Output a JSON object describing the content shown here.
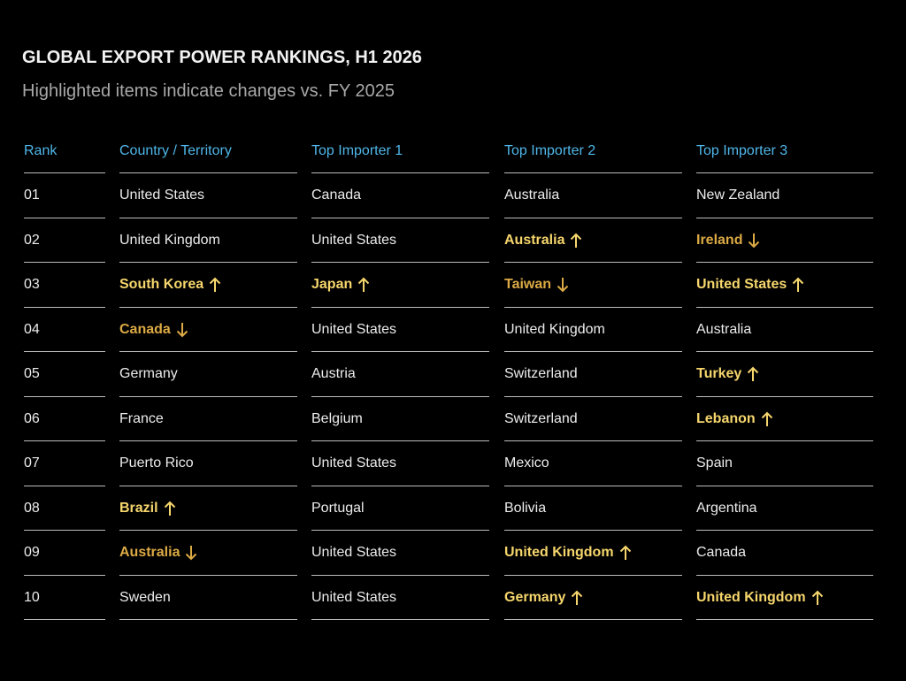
{
  "header": {
    "title": "GLOBAL EXPORT POWER RANKINGS, H1 2026",
    "subtitle": "Highlighted items indicate changes vs. FY 2025"
  },
  "table": {
    "columns": [
      "Rank",
      "Country / Territory",
      "Top Importer 1",
      "Top Importer 2",
      "Top Importer 3"
    ],
    "rows": [
      [
        "01",
        "United States",
        "Canada",
        "Australia",
        "New Zealand"
      ],
      [
        "02",
        "United Kingdom",
        "United States",
        {
          "text": "Australia",
          "change": "up"
        },
        {
          "text": "Ireland",
          "change": "down"
        }
      ],
      [
        "03",
        {
          "text": "South Korea",
          "change": "up"
        },
        {
          "text": "Japan",
          "change": "up"
        },
        {
          "text": "Taiwan",
          "change": "down"
        },
        {
          "text": "United States",
          "change": "up"
        }
      ],
      [
        "04",
        {
          "text": "Canada",
          "change": "down"
        },
        "United States",
        "United Kingdom",
        "Australia"
      ],
      [
        "05",
        "Germany",
        "Austria",
        "Switzerland",
        {
          "text": "Turkey",
          "change": "up"
        }
      ],
      [
        "06",
        "France",
        "Belgium",
        "Switzerland",
        {
          "text": "Lebanon",
          "change": "up"
        }
      ],
      [
        "07",
        "Puerto Rico",
        "United States",
        "Mexico",
        "Spain"
      ],
      [
        "08",
        {
          "text": "Brazil",
          "change": "up"
        },
        "Portugal",
        "Bolivia",
        "Argentina"
      ],
      [
        "09",
        {
          "text": "Australia",
          "change": "down"
        },
        "United States",
        {
          "text": "United Kingdom",
          "change": "up"
        },
        "Canada"
      ],
      [
        "10",
        "Sweden",
        "United States",
        {
          "text": "Germany",
          "change": "up"
        },
        {
          "text": "United Kingdom",
          "change": "up"
        }
      ]
    ]
  }
}
